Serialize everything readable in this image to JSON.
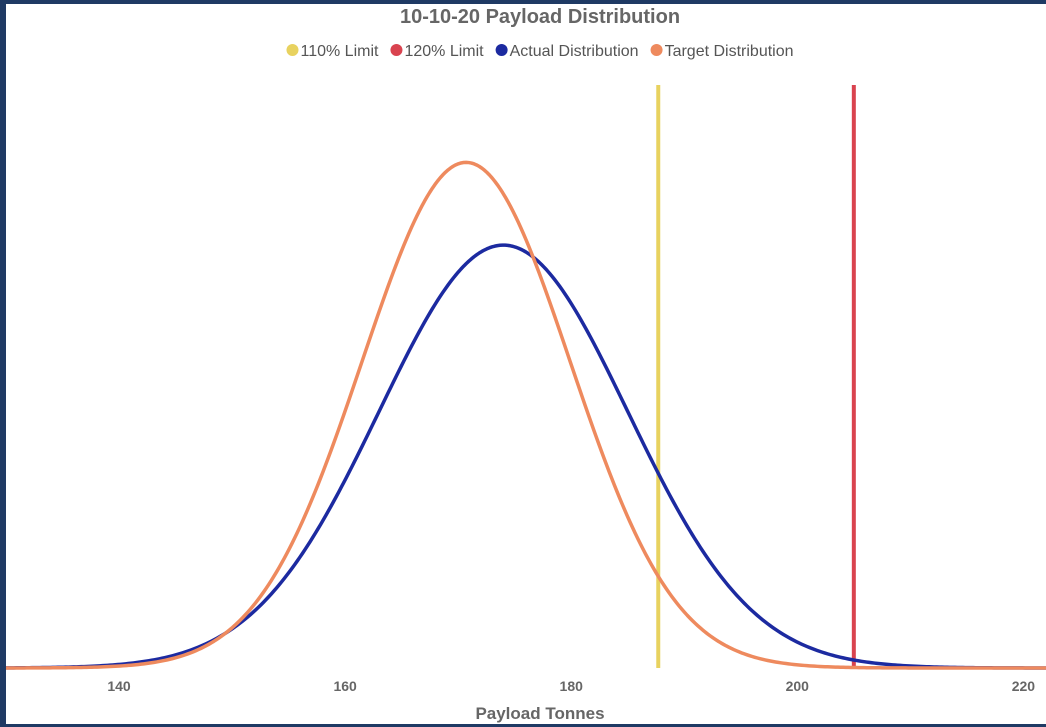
{
  "chart_data": {
    "type": "line",
    "title": "10-10-20 Payload Distribution",
    "xlabel": "Payload Tonnes",
    "ylabel": "",
    "xlim": [
      130,
      222
    ],
    "ylim": [
      0,
      0.05
    ],
    "x_ticks": [
      140,
      160,
      180,
      200,
      220
    ],
    "grid": false,
    "legend_position": "top-center",
    "series": [
      {
        "name": "110% Limit",
        "kind": "vline",
        "x": 187.7,
        "color": "#e8d25f"
      },
      {
        "name": "120% Limit",
        "kind": "vline",
        "x": 205.0,
        "color": "#d9434f"
      },
      {
        "name": "Actual Distribution",
        "kind": "normal",
        "mean": 174.0,
        "std": 11.0,
        "color": "#1c2aa0"
      },
      {
        "name": "Target Distribution",
        "kind": "normal",
        "mean": 170.7,
        "std": 9.2,
        "color": "#ee8a5e"
      }
    ]
  }
}
